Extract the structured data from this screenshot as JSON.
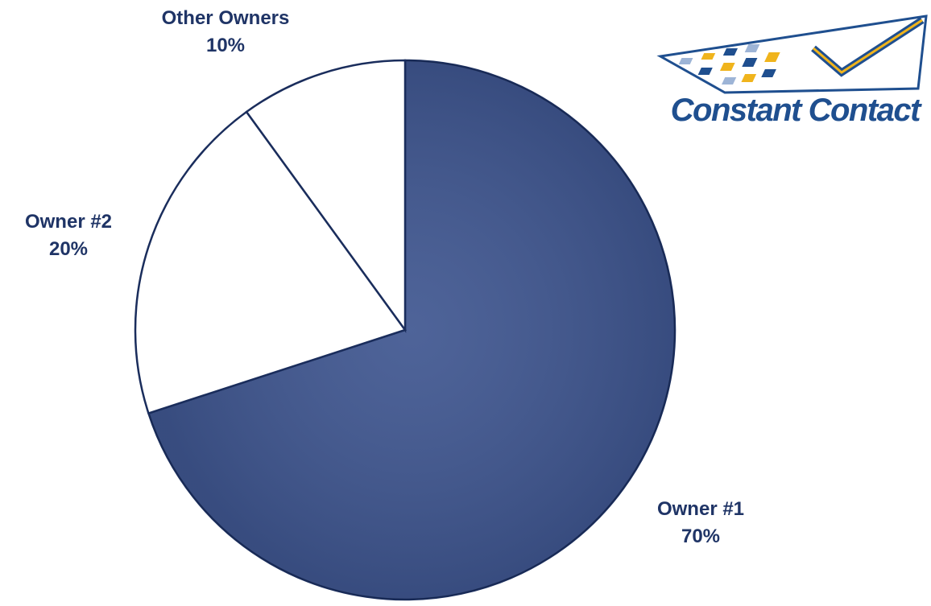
{
  "chart_data": {
    "type": "pie",
    "categories": [
      "Owner #1",
      "Owner #2",
      "Other Owners"
    ],
    "values": [
      70,
      20,
      10
    ],
    "value_labels": [
      "70%",
      "20%",
      "10%"
    ],
    "colors": [
      "#3f5690",
      "#ffffff",
      "#ffffff"
    ]
  },
  "logo": {
    "text": "Constant Contact"
  }
}
